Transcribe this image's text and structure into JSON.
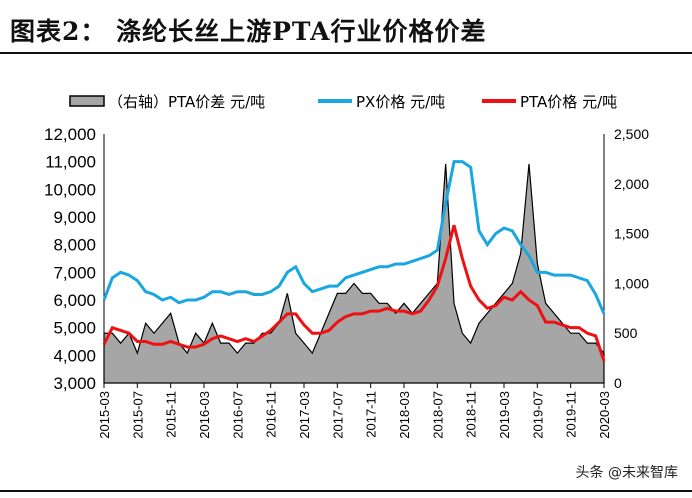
{
  "header": {
    "title": "图表2：  涤纶长丝上游PTA行业价格价差"
  },
  "watermark": "头条 @未来智库",
  "chart_data": {
    "type": "line",
    "title": "",
    "x_tick_labels": [
      "2015-03",
      "2015-07",
      "2015-11",
      "2016-03",
      "2016-07",
      "2016-11",
      "2017-03",
      "2017-07",
      "2017-11",
      "2018-03",
      "2018-07",
      "2018-11",
      "2019-03",
      "2019-07",
      "2019-11",
      "2020-03"
    ],
    "x_start": "2015-03",
    "x_end": "2020-03",
    "x_step": "month",
    "y_left": {
      "range": [
        3000,
        12000
      ],
      "ticks": [
        "3,000",
        "4,000",
        "5,000",
        "6,000",
        "7,000",
        "8,000",
        "9,000",
        "10,000",
        "11,000",
        "12,000"
      ]
    },
    "y_right": {
      "range": [
        0,
        2500
      ],
      "ticks": [
        "0",
        "500",
        "1,000",
        "1,500",
        "2,000",
        "2,500"
      ]
    },
    "legend_position": "top",
    "series": [
      {
        "name": "（右轴）PTA价差  元/吨",
        "type": "area",
        "axis": "right",
        "color": "#a6a6a6",
        "values": [
          500,
          500,
          400,
          500,
          300,
          600,
          500,
          600,
          700,
          400,
          300,
          500,
          400,
          600,
          400,
          400,
          300,
          400,
          400,
          500,
          500,
          600,
          900,
          500,
          400,
          300,
          500,
          700,
          900,
          900,
          1000,
          900,
          900,
          800,
          800,
          700,
          800,
          700,
          800,
          900,
          1000,
          2200,
          800,
          500,
          400,
          600,
          700,
          800,
          900,
          1000,
          1300,
          2200,
          1200,
          800,
          700,
          600,
          500,
          500,
          400,
          400,
          300
        ]
      },
      {
        "name": "PX价格  元/吨",
        "type": "line",
        "axis": "left",
        "color": "#1aa7e0",
        "values": [
          6000,
          6800,
          7000,
          6900,
          6700,
          6300,
          6200,
          6000,
          6100,
          5900,
          6000,
          6000,
          6100,
          6300,
          6300,
          6200,
          6300,
          6300,
          6200,
          6200,
          6300,
          6500,
          7000,
          7200,
          6600,
          6300,
          6400,
          6500,
          6500,
          6800,
          6900,
          7000,
          7100,
          7200,
          7200,
          7300,
          7300,
          7400,
          7500,
          7600,
          7800,
          9500,
          11000,
          11000,
          10800,
          8500,
          8000,
          8400,
          8600,
          8500,
          8000,
          7600,
          7000,
          7000,
          6900,
          6900,
          6900,
          6800,
          6700,
          6200,
          5500
        ]
      },
      {
        "name": "PTA价格  元/吨",
        "type": "line",
        "axis": "left",
        "color": "#ee1111",
        "values": [
          4400,
          5000,
          4900,
          4800,
          4500,
          4500,
          4400,
          4400,
          4500,
          4400,
          4300,
          4300,
          4400,
          4600,
          4700,
          4600,
          4500,
          4600,
          4500,
          4700,
          4900,
          5200,
          5500,
          5500,
          5100,
          4800,
          4800,
          4900,
          5200,
          5400,
          5500,
          5500,
          5600,
          5600,
          5700,
          5600,
          5600,
          5500,
          5600,
          6000,
          6500,
          7500,
          8700,
          7500,
          6500,
          6000,
          5700,
          5800,
          6100,
          6000,
          6300,
          6000,
          5800,
          5200,
          5200,
          5100,
          5000,
          5000,
          4800,
          4700,
          3800
        ]
      }
    ]
  }
}
